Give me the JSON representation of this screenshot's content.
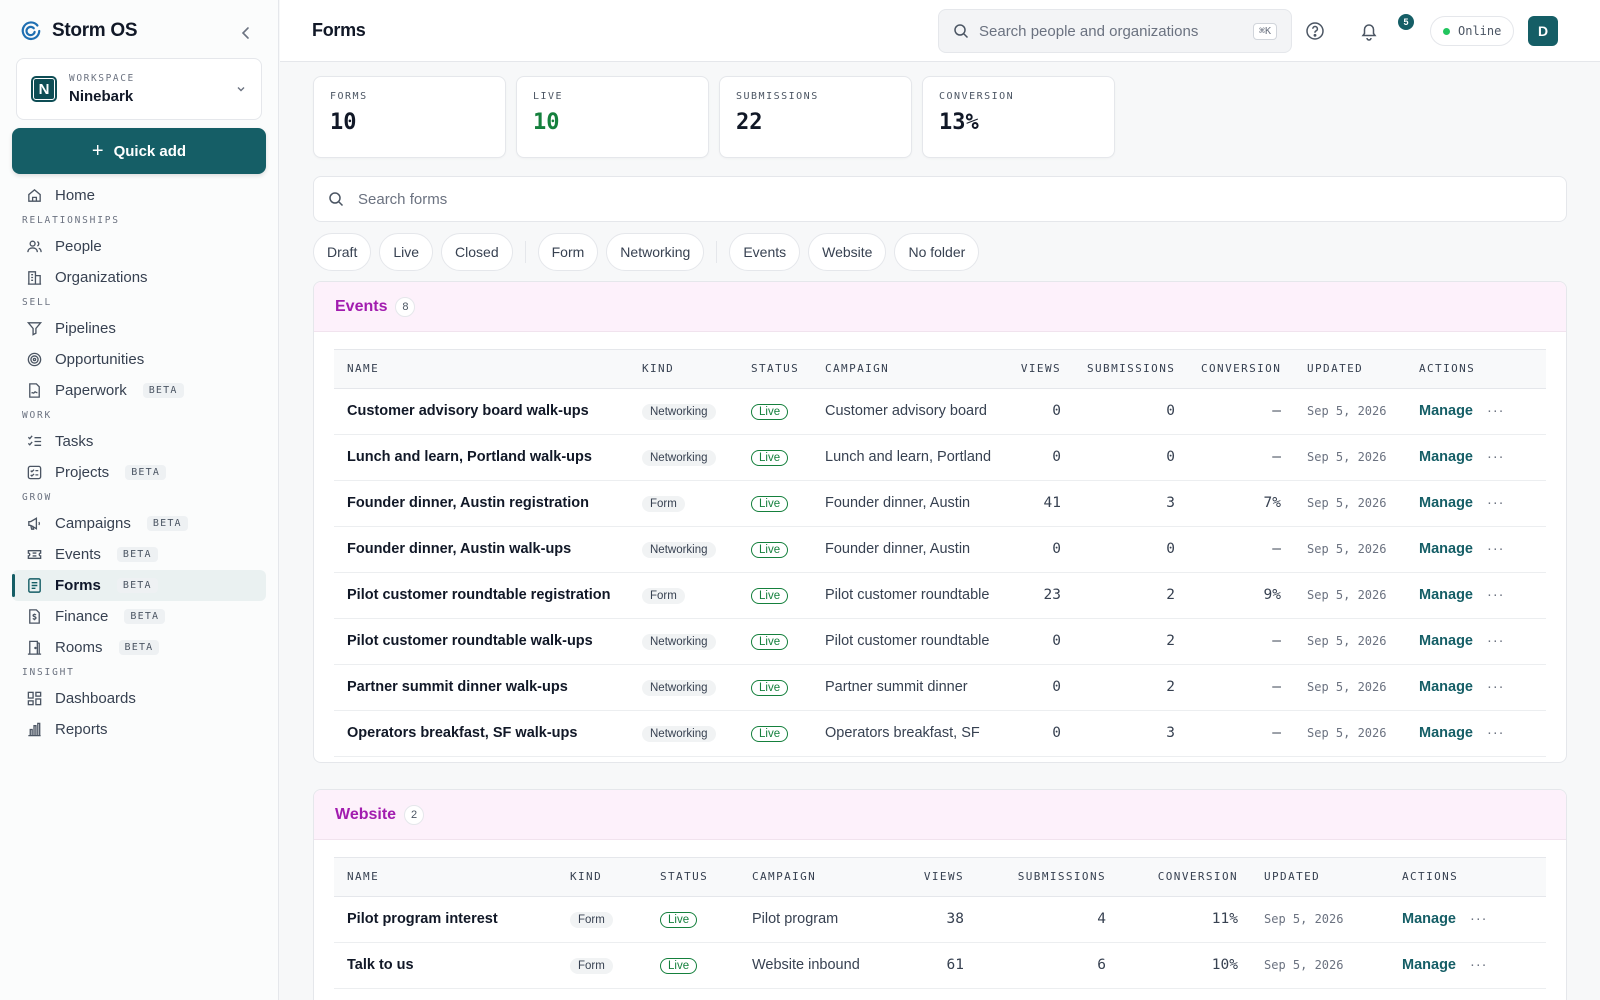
{
  "brand": {
    "name": "Storm OS"
  },
  "workspace": {
    "label": "WORKSPACE",
    "name": "Ninebark",
    "initial": "N"
  },
  "quick_add": {
    "label": "Quick add"
  },
  "nav": {
    "home": "Home",
    "sec_relationships": "RELATIONSHIPS",
    "people": "People",
    "organizations": "Organizations",
    "sec_sell": "SELL",
    "pipelines": "Pipelines",
    "opportunities": "Opportunities",
    "paperwork": "Paperwork",
    "sec_work": "WORK",
    "tasks": "Tasks",
    "projects": "Projects",
    "sec_grow": "GROW",
    "campaigns": "Campaigns",
    "events": "Events",
    "forms": "Forms",
    "finance": "Finance",
    "rooms": "Rooms",
    "sec_insight": "INSIGHT",
    "dashboards": "Dashboards",
    "reports": "Reports",
    "beta": "BETA"
  },
  "topbar": {
    "title": "Forms",
    "search_placeholder": "Search people and organizations",
    "shortcut": "⌘K",
    "notif_count": "5",
    "status": "Online",
    "avatar": "D"
  },
  "stats": [
    {
      "label": "FORMS",
      "value": "10"
    },
    {
      "label": "LIVE",
      "value": "10"
    },
    {
      "label": "SUBMISSIONS",
      "value": "22"
    },
    {
      "label": "CONVERSION",
      "value": "13%"
    }
  ],
  "form_search": {
    "placeholder": "Search forms"
  },
  "filters": [
    "Draft",
    "Live",
    "Closed",
    "Form",
    "Networking",
    "Events",
    "Website",
    "No folder"
  ],
  "columns": [
    "NAME",
    "KIND",
    "STATUS",
    "CAMPAIGN",
    "VIEWS",
    "SUBMISSIONS",
    "CONVERSION",
    "UPDATED",
    "ACTIONS"
  ],
  "row_actions": {
    "manage": "Manage",
    "more": "···"
  },
  "groups": [
    {
      "title": "Events",
      "count": "8",
      "rows": [
        {
          "name": "Customer advisory board walk-ups",
          "kind": "Networking",
          "status": "Live",
          "campaign": "Customer advisory board",
          "views": "0",
          "submissions": "0",
          "conversion": "—",
          "updated": "Sep 5, 2026"
        },
        {
          "name": "Lunch and learn, Portland walk-ups",
          "kind": "Networking",
          "status": "Live",
          "campaign": "Lunch and learn, Portland",
          "views": "0",
          "submissions": "0",
          "conversion": "—",
          "updated": "Sep 5, 2026"
        },
        {
          "name": "Founder dinner, Austin registration",
          "kind": "Form",
          "status": "Live",
          "campaign": "Founder dinner, Austin",
          "views": "41",
          "submissions": "3",
          "conversion": "7%",
          "updated": "Sep 5, 2026"
        },
        {
          "name": "Founder dinner, Austin walk-ups",
          "kind": "Networking",
          "status": "Live",
          "campaign": "Founder dinner, Austin",
          "views": "0",
          "submissions": "0",
          "conversion": "—",
          "updated": "Sep 5, 2026"
        },
        {
          "name": "Pilot customer roundtable registration",
          "kind": "Form",
          "status": "Live",
          "campaign": "Pilot customer roundtable",
          "views": "23",
          "submissions": "2",
          "conversion": "9%",
          "updated": "Sep 5, 2026"
        },
        {
          "name": "Pilot customer roundtable walk-ups",
          "kind": "Networking",
          "status": "Live",
          "campaign": "Pilot customer roundtable",
          "views": "0",
          "submissions": "2",
          "conversion": "—",
          "updated": "Sep 5, 2026"
        },
        {
          "name": "Partner summit dinner walk-ups",
          "kind": "Networking",
          "status": "Live",
          "campaign": "Partner summit dinner",
          "views": "0",
          "submissions": "2",
          "conversion": "—",
          "updated": "Sep 5, 2026"
        },
        {
          "name": "Operators breakfast, SF walk-ups",
          "kind": "Networking",
          "status": "Live",
          "campaign": "Operators breakfast, SF",
          "views": "0",
          "submissions": "3",
          "conversion": "—",
          "updated": "Sep 5, 2026"
        }
      ]
    },
    {
      "title": "Website",
      "count": "2",
      "rows": [
        {
          "name": "Pilot program interest",
          "kind": "Form",
          "status": "Live",
          "campaign": "Pilot program",
          "views": "38",
          "submissions": "4",
          "conversion": "11%",
          "updated": "Sep 5, 2026"
        },
        {
          "name": "Talk to us",
          "kind": "Form",
          "status": "Live",
          "campaign": "Website inbound",
          "views": "61",
          "submissions": "6",
          "conversion": "10%",
          "updated": "Sep 5, 2026"
        }
      ]
    }
  ]
}
